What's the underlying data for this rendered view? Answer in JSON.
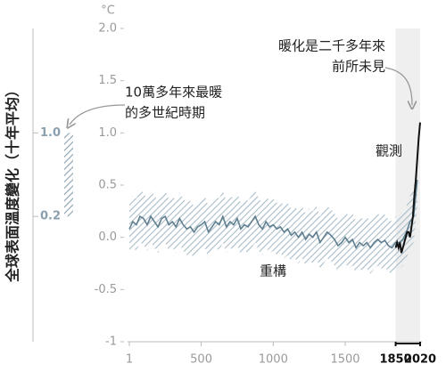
{
  "chart_data": {
    "type": "line",
    "y_label": "全球表面溫度變化（十年平均）",
    "y_unit": "°C",
    "xlim": [
      1,
      2020
    ],
    "ylim": [
      -1,
      2
    ],
    "xticks": [
      1,
      500,
      1000,
      1500,
      1850,
      2020
    ],
    "yticks": [
      {
        "value": 2,
        "label": "2.0"
      },
      {
        "value": 1.5,
        "label": "1.5"
      },
      {
        "value": 1,
        "label": "1.0"
      },
      {
        "value": 0.5,
        "label": "0.5"
      },
      {
        "value": 0,
        "label": "0.0"
      },
      -0.5,
      -1
    ],
    "highlight_span": [
      1850,
      2020
    ],
    "series": [
      {
        "name": "重構",
        "color": "#5f7f91",
        "band_color": "#a9bcc8",
        "uncertainty": 0.25,
        "x": [
          1,
          25,
          50,
          75,
          100,
          125,
          150,
          175,
          200,
          225,
          250,
          275,
          300,
          325,
          350,
          375,
          400,
          425,
          450,
          475,
          500,
          525,
          550,
          575,
          600,
          625,
          650,
          675,
          700,
          725,
          750,
          775,
          800,
          825,
          850,
          875,
          900,
          925,
          950,
          975,
          1000,
          1025,
          1050,
          1075,
          1100,
          1125,
          1150,
          1175,
          1200,
          1225,
          1250,
          1275,
          1300,
          1325,
          1350,
          1375,
          1400,
          1425,
          1450,
          1475,
          1500,
          1525,
          1550,
          1575,
          1600,
          1625,
          1650,
          1675,
          1700,
          1725,
          1750,
          1775,
          1800,
          1825,
          1850,
          1875,
          1900,
          1925,
          1950,
          1975,
          2000
        ],
        "values": [
          0.08,
          0.15,
          0.12,
          0.2,
          0.18,
          0.12,
          0.2,
          0.15,
          0.1,
          0.18,
          0.2,
          0.12,
          0.15,
          0.1,
          0.18,
          0.12,
          0.08,
          0.1,
          0.05,
          0.1,
          0.12,
          0.15,
          0.05,
          0.1,
          0.15,
          0.12,
          0.2,
          0.1,
          0.15,
          0.12,
          0.18,
          0.08,
          0.12,
          0.1,
          0.15,
          0.2,
          0.12,
          0.08,
          0.15,
          0.1,
          0.12,
          0.08,
          0.1,
          0.05,
          0.08,
          0.02,
          0.05,
          0.0,
          0.05,
          -0.02,
          0.03,
          0.0,
          0.05,
          -0.05,
          0.0,
          0.05,
          0.02,
          -0.02,
          -0.08,
          -0.05,
          0.0,
          -0.05,
          -0.02,
          -0.1,
          -0.05,
          -0.08,
          -0.05,
          -0.1,
          -0.05,
          -0.02,
          -0.05,
          -0.03,
          -0.08,
          -0.1,
          -0.05,
          -0.05,
          -0.02,
          0.05,
          0.15,
          0.2,
          0.55
        ]
      },
      {
        "name": "觀測",
        "color": "#111111",
        "x": [
          1850,
          1860,
          1870,
          1880,
          1890,
          1900,
          1910,
          1920,
          1930,
          1940,
          1950,
          1960,
          1970,
          1980,
          1990,
          2000,
          2010,
          2020
        ],
        "values": [
          -0.1,
          -0.05,
          -0.1,
          -0.05,
          -0.15,
          -0.1,
          -0.05,
          0.0,
          0.05,
          0.05,
          0.0,
          0.1,
          0.2,
          0.4,
          0.55,
          0.75,
          0.95,
          1.1
        ]
      }
    ],
    "warmest_period": {
      "range": [
        0.2,
        1.0
      ],
      "ticks": [
        {
          "value": 1.0,
          "label": "1.0"
        },
        {
          "value": 0.2,
          "label": "0.2"
        }
      ],
      "color": "#8aa0ae",
      "annotation": [
        "10萬多年來最暖",
        "的多世紀時期"
      ]
    },
    "annotation": [
      "暖化是二千多年來",
      "前所未見"
    ]
  }
}
